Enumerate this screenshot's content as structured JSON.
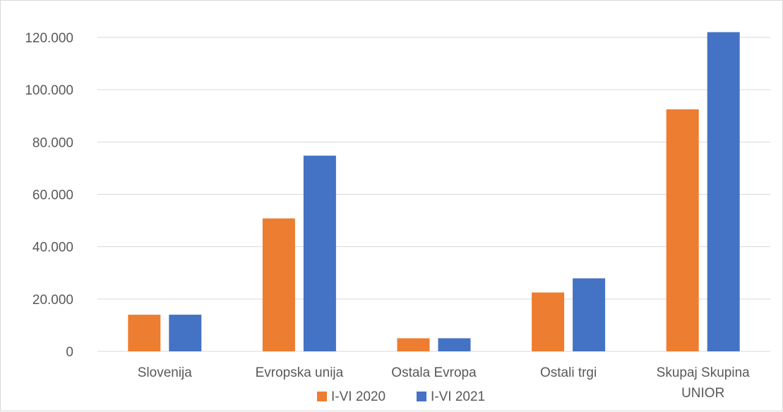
{
  "chart_data": {
    "type": "bar",
    "title": "",
    "xlabel": "",
    "ylabel": "",
    "categories": [
      [
        "Slovenija"
      ],
      [
        "Evropska unija"
      ],
      [
        "Ostala Evropa"
      ],
      [
        "Ostali trgi"
      ],
      [
        "Skupaj Skupina",
        "UNIOR"
      ]
    ],
    "series": [
      {
        "name": "I-VI 2020",
        "color": "#ed7d31",
        "values": [
          14000,
          50800,
          5000,
          22500,
          92500
        ]
      },
      {
        "name": "I-VI 2021",
        "color": "#4472c4",
        "values": [
          14000,
          74800,
          5000,
          27900,
          122000
        ]
      }
    ],
    "ylim": [
      0,
      120000
    ],
    "yticks": [
      0,
      20000,
      40000,
      60000,
      80000,
      100000,
      120000
    ],
    "ytick_labels": [
      "0",
      "20.000",
      "40.000",
      "60.000",
      "80.000",
      "100.000",
      "120.000"
    ],
    "grid": true,
    "legend_position": "bottom"
  }
}
